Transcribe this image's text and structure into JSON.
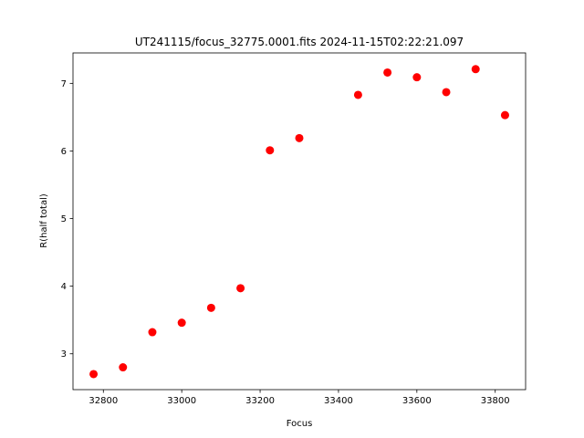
{
  "chart_data": {
    "type": "scatter",
    "title": "UT241115/focus_32775.0001.fits 2024-11-15T02:22:21.097",
    "x_label": "Focus",
    "y_label": "R(half total)",
    "color": "#ff0000",
    "x": [
      32775,
      32850,
      32925,
      33000,
      33075,
      33150,
      33225,
      33300,
      33450,
      33525,
      33600,
      33675,
      33750,
      33825
    ],
    "values": [
      2.7,
      2.8,
      3.32,
      3.46,
      3.68,
      3.97,
      6.01,
      6.19,
      6.83,
      7.16,
      7.09,
      6.87,
      7.21,
      6.53
    ],
    "xlim": [
      32722.5,
      33877.5
    ],
    "ylim": [
      2.47,
      7.45
    ],
    "xticks": [
      32800,
      33000,
      33200,
      33400,
      33600,
      33800
    ],
    "yticks": [
      3,
      4,
      5,
      6,
      7
    ]
  }
}
